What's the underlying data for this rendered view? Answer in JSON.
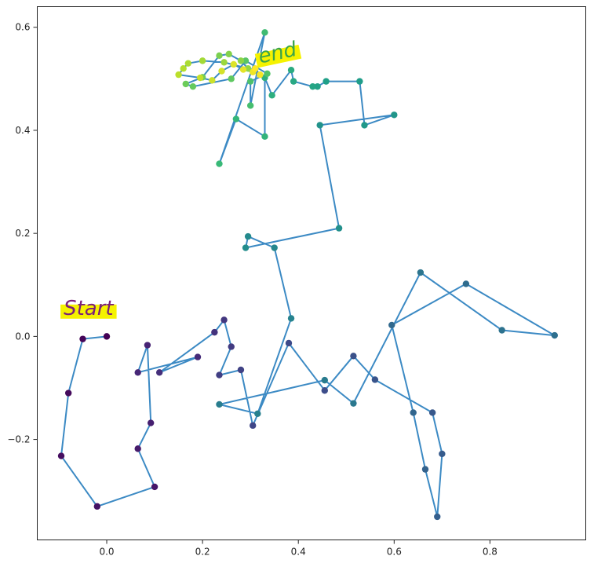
{
  "chart_data": {
    "type": "scatter",
    "title": "",
    "xlabel": "",
    "ylabel": "",
    "xlim": [
      -0.145,
      1.0
    ],
    "ylim": [
      -0.395,
      0.64
    ],
    "xticks": [
      0.0,
      0.2,
      0.4,
      0.6,
      0.8
    ],
    "yticks": [
      -0.2,
      0.0,
      0.2,
      0.4,
      0.6
    ],
    "xtick_labels": [
      "0.0",
      "0.2",
      "0.4",
      "0.6",
      "0.8"
    ],
    "ytick_labels": [
      "−0.2",
      "0.0",
      "0.2",
      "0.4",
      "0.6"
    ],
    "grid": false,
    "colormap": "viridis",
    "line_color": "#3c8ac4",
    "annotations": [
      {
        "text": "Start",
        "x": -0.09,
        "y": 0.042,
        "color": "#7a1f7a",
        "highlight": "#f5f200"
      },
      {
        "text": "end",
        "x": 0.32,
        "y": 0.53,
        "color": "#3aa44a",
        "highlight": "#f5f200"
      }
    ],
    "series": [
      {
        "x": [
          0.0,
          -0.05,
          -0.08,
          -0.095,
          -0.02,
          0.1,
          0.065,
          0.092,
          0.085,
          0.065,
          0.19,
          0.11,
          0.225,
          0.245,
          0.26,
          0.235,
          0.28,
          0.305,
          0.38,
          0.455,
          0.515,
          0.56,
          0.68,
          0.7,
          0.69,
          0.665,
          0.64,
          0.595,
          0.75,
          0.935,
          0.825,
          0.655,
          0.515,
          0.455,
          0.235,
          0.315,
          0.385,
          0.35,
          0.295,
          0.29,
          0.485,
          0.445,
          0.6,
          0.538,
          0.528,
          0.458,
          0.44,
          0.43,
          0.39,
          0.385,
          0.345,
          0.33,
          0.33,
          0.27,
          0.235,
          0.33,
          0.3,
          0.3,
          0.335,
          0.29,
          0.26,
          0.18,
          0.165,
          0.2,
          0.235,
          0.255,
          0.28,
          0.295,
          0.245,
          0.2,
          0.17,
          0.16,
          0.15,
          0.195,
          0.22,
          0.24,
          0.265,
          0.285,
          0.305,
          0.32,
          0.31
        ],
        "y": [
          0.0,
          -0.005,
          -0.11,
          -0.232,
          -0.33,
          -0.292,
          -0.218,
          -0.168,
          -0.017,
          -0.07,
          -0.04,
          -0.07,
          0.008,
          0.032,
          -0.02,
          -0.075,
          -0.065,
          -0.173,
          -0.013,
          -0.105,
          -0.038,
          -0.084,
          -0.148,
          -0.228,
          -0.35,
          -0.258,
          -0.148,
          0.022,
          0.102,
          0.002,
          0.012,
          0.124,
          -0.13,
          -0.085,
          -0.132,
          -0.15,
          0.035,
          0.172,
          0.194,
          0.172,
          0.21,
          0.41,
          0.43,
          0.41,
          0.495,
          0.495,
          0.485,
          0.485,
          0.495,
          0.517,
          0.468,
          0.502,
          0.388,
          0.422,
          0.335,
          0.59,
          0.448,
          0.495,
          0.51,
          0.535,
          0.5,
          0.485,
          0.49,
          0.503,
          0.545,
          0.548,
          0.535,
          0.52,
          0.532,
          0.535,
          0.53,
          0.52,
          0.508,
          0.502,
          0.497,
          0.515,
          0.528,
          0.518,
          0.513,
          0.508,
          0.52
        ]
      }
    ]
  }
}
